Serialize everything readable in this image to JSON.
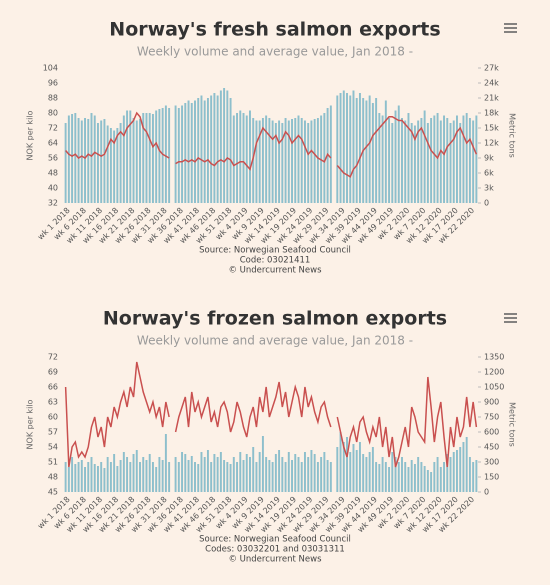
{
  "chart_data": [
    {
      "type": "combo",
      "title": "Norway's fresh salmon exports",
      "subtitle": "Weekly volume and average value, Jan 2018 -",
      "ylabel": "NOK per kilo",
      "y2label": "Metric tons",
      "source": [
        "Source: Norwegian Seafood Council",
        "Code: 03021411",
        "© Undercurrent News"
      ],
      "categories": [
        "wk 1 2018",
        null,
        null,
        null,
        null,
        "wk 6 2018",
        null,
        null,
        null,
        null,
        "wk 11 2018",
        null,
        null,
        null,
        null,
        "wk 16 2018",
        null,
        null,
        null,
        null,
        "wk 21 2018",
        null,
        null,
        null,
        null,
        "wk 26 2018",
        null,
        null,
        null,
        null,
        "wk 31 2018",
        null,
        null,
        null,
        null,
        "wk 36 2018",
        null,
        null,
        null,
        null,
        "wk 41 2018",
        null,
        null,
        null,
        null,
        "wk 46 2018",
        null,
        null,
        null,
        null,
        "wk 51 2018",
        null,
        null,
        null,
        null,
        "wk 4 2019",
        null,
        null,
        null,
        null,
        "wk 9 2019",
        null,
        null,
        null,
        null,
        "wk 14 2019",
        null,
        null,
        null,
        null,
        "wk 19 2019",
        null,
        null,
        null,
        null,
        "wk 24 2019",
        null,
        null,
        null,
        null,
        "wk 29 2019",
        null,
        null,
        null,
        null,
        "wk 34 2019",
        null,
        null,
        null,
        null,
        "wk 39 2019",
        null,
        null,
        null,
        null,
        "wk 44 2019",
        null,
        null,
        null,
        null,
        "wk 49 2019",
        null,
        null,
        null,
        null,
        "wk 2 2020",
        null,
        null,
        null,
        null,
        "wk 7 2020",
        null,
        null,
        null,
        null,
        "wk 12 2020",
        null,
        null,
        null,
        null,
        "wk 17 2020",
        null,
        null,
        null,
        null,
        "wk 22 2020",
        null,
        null
      ],
      "ylim": [
        32,
        104
      ],
      "yticks": [
        32,
        40,
        48,
        56,
        64,
        72,
        80,
        88,
        96,
        104
      ],
      "y2lim": [
        0,
        27000
      ],
      "y2ticks": [
        0,
        {
          "value": 3000,
          "label": "3k"
        },
        {
          "value": 6000,
          "label": "6k"
        },
        {
          "value": 9000,
          "label": "9k"
        },
        {
          "value": 12000,
          "label": "12k"
        },
        {
          "value": 15000,
          "label": "15k"
        },
        {
          "value": 18000,
          "label": "18k"
        },
        {
          "value": 21000,
          "label": "21k"
        },
        {
          "value": 24000,
          "label": "24k"
        },
        {
          "value": 27000,
          "label": "27k"
        }
      ],
      "series": [
        {
          "color": "#8dbfcc",
          "axis": "y2",
          "values": [
            16000,
            17500,
            17800,
            18000,
            17000,
            16500,
            17000,
            16800,
            18000,
            17500,
            16000,
            16500,
            16800,
            15500,
            15000,
            14500,
            15000,
            16000,
            17500,
            18500,
            18500,
            17000,
            16500,
            16800,
            18000,
            18000,
            18000,
            17800,
            18500,
            18800,
            19000,
            19500,
            19000,
            null,
            19500,
            19000,
            19500,
            20000,
            20500,
            20000,
            20500,
            21000,
            21500,
            20500,
            21000,
            21500,
            22000,
            21500,
            22500,
            23000,
            22500,
            21000,
            17500,
            18000,
            18500,
            18000,
            17500,
            18500,
            17000,
            16500,
            16500,
            17000,
            17500,
            17000,
            16500,
            16000,
            16500,
            16000,
            17000,
            16500,
            16800,
            17000,
            17500,
            17000,
            16500,
            16000,
            16500,
            16800,
            17000,
            17500,
            18000,
            19000,
            19500,
            null,
            21500,
            22000,
            22500,
            22000,
            21500,
            22500,
            21000,
            22000,
            21000,
            20500,
            21500,
            20000,
            21000,
            18000,
            17500,
            20500,
            17000,
            16000,
            18500,
            19500,
            17000,
            16500,
            18000,
            16000,
            15500,
            16500,
            17000,
            18500,
            16000,
            17000,
            17500,
            18000,
            16500,
            17500,
            17000,
            16000,
            16500,
            17500,
            16000,
            17500,
            18000,
            17000,
            16500,
            17500
          ]
        },
        {
          "color": "#c9504f",
          "values": [
            60,
            58,
            57,
            58,
            56,
            57,
            56,
            58,
            57,
            59,
            58,
            57,
            58,
            62,
            66,
            64,
            68,
            70,
            68,
            72,
            74,
            76,
            80,
            78,
            72,
            70,
            66,
            62,
            64,
            60,
            58,
            57,
            56,
            null,
            53,
            54,
            54,
            55,
            54,
            55,
            54,
            56,
            55,
            54,
            55,
            53,
            52,
            54,
            55,
            54,
            56,
            55,
            52,
            53,
            54,
            54,
            52,
            50,
            56,
            64,
            68,
            72,
            70,
            68,
            66,
            68,
            64,
            66,
            70,
            68,
            64,
            66,
            68,
            66,
            62,
            58,
            60,
            58,
            56,
            55,
            54,
            58,
            56,
            null,
            52,
            50,
            48,
            47,
            46,
            50,
            52,
            56,
            60,
            62,
            64,
            68,
            70,
            72,
            74,
            76,
            78,
            78,
            77,
            76,
            76,
            74,
            72,
            70,
            66,
            70,
            72,
            68,
            64,
            60,
            58,
            56,
            60,
            58,
            62,
            64,
            66,
            70,
            72,
            68,
            64,
            66,
            62,
            58
          ]
        }
      ]
    },
    {
      "type": "combo",
      "title": "Norway's frozen salmon exports",
      "subtitle": "Weekly volume and average value, Jan 2018 -",
      "ylabel": "NOK per kilo",
      "y2label": "Metric tons",
      "source": [
        "Source: Norwegian Seafood Council",
        "Codes: 03032201 and 03031311",
        "© Undercurrent News"
      ],
      "categories": [
        "wk 1 2018",
        null,
        null,
        null,
        null,
        "wk 6 2018",
        null,
        null,
        null,
        null,
        "wk 11 2018",
        null,
        null,
        null,
        null,
        "wk 16 2018",
        null,
        null,
        null,
        null,
        "wk 21 2018",
        null,
        null,
        null,
        null,
        "wk 26 2018",
        null,
        null,
        null,
        null,
        "wk 31 2018",
        null,
        null,
        null,
        null,
        "wk 36 2018",
        null,
        null,
        null,
        null,
        "wk 41 2018",
        null,
        null,
        null,
        null,
        "wk 46 2018",
        null,
        null,
        null,
        null,
        "wk 51 2018",
        null,
        null,
        null,
        null,
        "wk 4 2019",
        null,
        null,
        null,
        null,
        "wk 9 2019",
        null,
        null,
        null,
        null,
        "wk 14 2019",
        null,
        null,
        null,
        null,
        "wk 19 2019",
        null,
        null,
        null,
        null,
        "wk 24 2019",
        null,
        null,
        null,
        null,
        "wk 29 2019",
        null,
        null,
        null,
        null,
        "wk 34 2019",
        null,
        null,
        null,
        null,
        "wk 39 2019",
        null,
        null,
        null,
        null,
        "wk 44 2019",
        null,
        null,
        null,
        null,
        "wk 49 2019",
        null,
        null,
        null,
        null,
        "wk 2 2020",
        null,
        null,
        null,
        null,
        "wk 7 2020",
        null,
        null,
        null,
        null,
        "wk 12 2020",
        null,
        null,
        null,
        null,
        "wk 17 2020",
        null,
        null,
        null,
        null,
        "wk 22 2020",
        null,
        null
      ],
      "ylim": [
        45,
        72
      ],
      "yticks": [
        45,
        48,
        51,
        54,
        57,
        60,
        63,
        66,
        69,
        72
      ],
      "y2lim": [
        0,
        1350
      ],
      "y2ticks": [
        0,
        150,
        300,
        450,
        600,
        750,
        900,
        1050,
        1200,
        1350
      ],
      "series": [
        {
          "color": "#8dbfcc",
          "axis": "y2",
          "values": [
            300,
            250,
            350,
            280,
            300,
            320,
            250,
            300,
            350,
            280,
            260,
            300,
            240,
            350,
            300,
            380,
            260,
            320,
            400,
            350,
            300,
            380,
            420,
            300,
            350,
            320,
            380,
            300,
            250,
            350,
            320,
            580,
            300,
            null,
            350,
            300,
            400,
            380,
            320,
            360,
            300,
            280,
            400,
            350,
            420,
            300,
            380,
            350,
            400,
            320,
            300,
            280,
            350,
            300,
            400,
            320,
            380,
            350,
            450,
            300,
            400,
            560,
            350,
            320,
            300,
            380,
            420,
            350,
            300,
            400,
            320,
            380,
            350,
            300,
            400,
            350,
            420,
            380,
            300,
            350,
            400,
            320,
            300,
            null,
            450,
            600,
            500,
            550,
            400,
            480,
            420,
            500,
            380,
            350,
            400,
            450,
            300,
            280,
            350,
            300,
            250,
            400,
            350,
            300,
            350,
            300,
            250,
            320,
            280,
            350,
            300,
            260,
            220,
            200,
            300,
            350,
            250,
            300,
            380,
            350,
            400,
            420,
            450,
            500,
            550,
            350,
            300,
            320
          ]
        },
        {
          "color": "#c9504f",
          "values": [
            66,
            50,
            54,
            55,
            52,
            53,
            52,
            54,
            58,
            60,
            56,
            58,
            54,
            60,
            58,
            62,
            60,
            63,
            65,
            62,
            66,
            64,
            71,
            68,
            65,
            63,
            61,
            63,
            60,
            62,
            58,
            63,
            60,
            null,
            57,
            60,
            62,
            64,
            58,
            65,
            61,
            63,
            60,
            62,
            64,
            59,
            61,
            58,
            62,
            63,
            61,
            57,
            59,
            63,
            61,
            58,
            56,
            60,
            62,
            58,
            64,
            61,
            66,
            60,
            62,
            64,
            67,
            62,
            65,
            60,
            63,
            66,
            64,
            60,
            66,
            62,
            64,
            61,
            59,
            62,
            63,
            60,
            58,
            null,
            60,
            57,
            54,
            52,
            56,
            58,
            55,
            59,
            60,
            57,
            55,
            58,
            56,
            60,
            54,
            58,
            52,
            56,
            50,
            52,
            55,
            58,
            54,
            62,
            60,
            57,
            56,
            55,
            68,
            62,
            55,
            60,
            63,
            56,
            50,
            58,
            54,
            60,
            56,
            58,
            64,
            58,
            63,
            58
          ]
        }
      ]
    }
  ]
}
